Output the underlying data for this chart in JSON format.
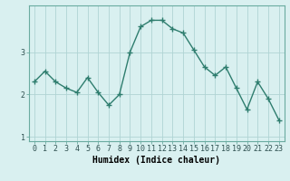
{
  "xlabel": "Humidex (Indice chaleur)",
  "x": [
    0,
    1,
    2,
    3,
    4,
    5,
    6,
    7,
    8,
    9,
    10,
    11,
    12,
    13,
    14,
    15,
    16,
    17,
    18,
    19,
    20,
    21,
    22,
    23
  ],
  "y": [
    2.3,
    2.55,
    2.3,
    2.15,
    2.05,
    2.4,
    2.05,
    1.75,
    2.0,
    3.0,
    3.6,
    3.75,
    3.75,
    3.55,
    3.45,
    3.05,
    2.65,
    2.45,
    2.65,
    2.15,
    1.65,
    2.3,
    1.9,
    1.4
  ],
  "line_color": "#2e7d6e",
  "marker": "+",
  "marker_size": 4,
  "marker_lw": 1.0,
  "line_width": 1.0,
  "bg_color": "#d9f0f0",
  "grid_color": "#b0d4d4",
  "ylim": [
    0.9,
    4.1
  ],
  "yticks": [
    1,
    2,
    3
  ],
  "xlim": [
    -0.5,
    23.5
  ],
  "label_fontsize": 7,
  "tick_fontsize": 6,
  "spine_color": "#6aaba0",
  "tick_color": "#2e5050"
}
